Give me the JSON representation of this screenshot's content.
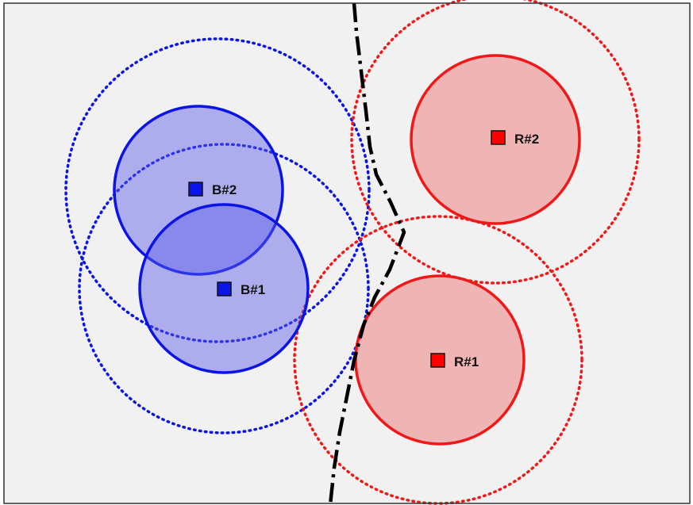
{
  "diagram": {
    "background_color": "#f1f1f1",
    "frame_color": "#333333",
    "boundary_color": "#000000",
    "teams": [
      {
        "team": "blue",
        "fill": "rgba(90, 90, 235, 0.45)",
        "stroke": "#0a14e6",
        "marker_fill": "#0a14e6",
        "nodes": [
          {
            "id": "b1",
            "label": "B#1"
          },
          {
            "id": "b2",
            "label": "B#2"
          }
        ]
      },
      {
        "team": "red",
        "fill": "rgba(238, 120, 120, 0.5)",
        "stroke": "#f01818",
        "marker_fill": "#ff0000",
        "nodes": [
          {
            "id": "r1",
            "label": "R#1"
          },
          {
            "id": "r2",
            "label": "R#2"
          }
        ]
      }
    ]
  }
}
